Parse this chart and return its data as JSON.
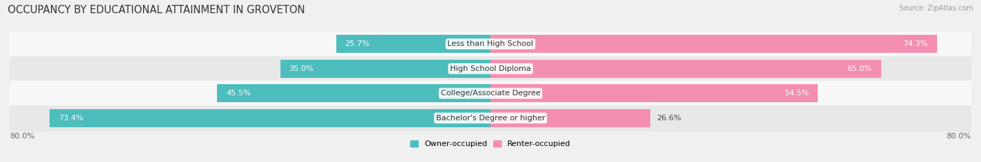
{
  "title": "OCCUPANCY BY EDUCATIONAL ATTAINMENT IN GROVETON",
  "source": "Source: ZipAtlas.com",
  "categories": [
    "Less than High School",
    "High School Diploma",
    "College/Associate Degree",
    "Bachelor's Degree or higher"
  ],
  "owner_values": [
    25.7,
    35.0,
    45.5,
    73.4
  ],
  "renter_values": [
    74.3,
    65.0,
    54.5,
    26.6
  ],
  "owner_color": "#4dbdbd",
  "renter_color": "#f48fb1",
  "owner_label": "Owner-occupied",
  "renter_label": "Renter-occupied",
  "axis_left_label": "80.0%",
  "axis_right_label": "80.0%",
  "bar_height": 0.72,
  "bg_color": "#f0f0f0",
  "row_bg_even": "#f8f8f8",
  "row_bg_odd": "#e8e8e8",
  "title_fontsize": 10.5,
  "label_fontsize": 8.0,
  "value_fontsize": 8.0,
  "cat_fontsize": 8.0
}
